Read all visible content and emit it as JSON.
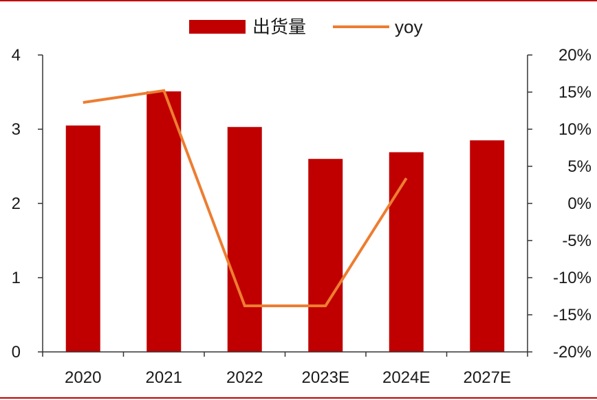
{
  "chart_data": {
    "type": "bar",
    "categories": [
      "2020",
      "2021",
      "2022",
      "2023E",
      "2024E",
      "2027E"
    ],
    "series": [
      {
        "name": "出货量",
        "type": "bar",
        "axis": "left",
        "color": "#c00000",
        "values": [
          3.05,
          3.51,
          3.03,
          2.6,
          2.69,
          2.85
        ]
      },
      {
        "name": "yoy",
        "type": "line",
        "axis": "right",
        "color": "#ed7d31",
        "values": [
          13.6,
          15.2,
          -13.8,
          -13.8,
          3.4,
          null
        ]
      }
    ],
    "left_axis": {
      "ylim": [
        0,
        4
      ],
      "ticks": [
        "0",
        "1",
        "2",
        "3",
        "4"
      ]
    },
    "right_axis": {
      "ylim": [
        -20,
        20
      ],
      "ticks": [
        "-20%",
        "-15%",
        "-10%",
        "-5%",
        "0%",
        "5%",
        "10%",
        "15%",
        "20%"
      ]
    },
    "legend_position": "top-center",
    "grid": false
  }
}
